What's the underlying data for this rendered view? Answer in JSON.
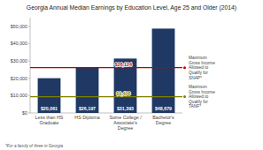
{
  "chart_data": {
    "type": "bar",
    "title": "Georgia Annual Median Earnings by Education Level, Age 25 and Older (2014)",
    "categories": [
      "Less than HS Graduate",
      "HS Diploma",
      "Some College /\nAssociate's Degree",
      "Bachelor's Degree"
    ],
    "values": [
      20061,
      26197,
      31393,
      48679
    ],
    "value_labels": [
      "$20,061",
      "$26,197",
      "$31,393",
      "$48,679"
    ],
    "data_labels": true,
    "color": "#1f3864",
    "ylim": [
      0,
      55000
    ],
    "yticks": [
      {
        "value": 0,
        "label": "$0"
      },
      {
        "value": 10000,
        "label": "$10,000"
      },
      {
        "value": 20000,
        "label": "$20,000"
      },
      {
        "value": 30000,
        "label": "$30,000"
      },
      {
        "value": 40000,
        "label": "$40,000"
      },
      {
        "value": 50000,
        "label": "$50,000"
      }
    ],
    "grid": false,
    "reference_lines": [
      {
        "value": 26124,
        "label": "$26,124",
        "color": "#c00000",
        "annotation": "Maximum\nGross Income\nAllowed to\nQualify for\nSNAP*"
      },
      {
        "value": 9408,
        "label": "$9,408",
        "color": "#808000",
        "annotation": "Maximum\nGross Income\nAllowed to\nQualify for\nTANF*"
      }
    ],
    "footnote": "*For a family of three in Georgia"
  }
}
